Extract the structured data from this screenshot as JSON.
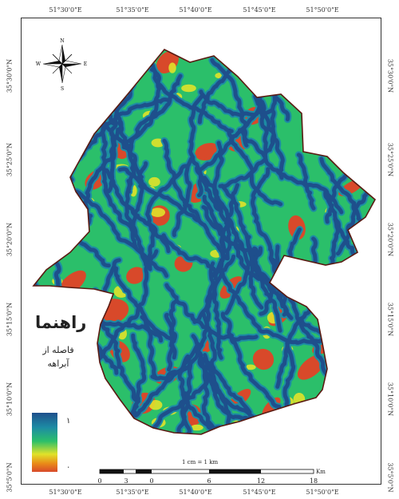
{
  "map": {
    "top_coords": [
      "51°30'0\"E",
      "51°35'0\"E",
      "51°40'0\"E",
      "51°45'0\"E",
      "51°50'0\"E"
    ],
    "bottom_coords": [
      "51°30'0\"E",
      "51°35'0\"E",
      "51°40'0\"E",
      "51°45'0\"E",
      "51°50'0\"E"
    ],
    "left_coords": [
      "35°30'0\"N",
      "35°25'0\"N",
      "35°20'0\"N",
      "35°15'0\"N",
      "35°10'0\"N",
      "35°5'0\"N"
    ],
    "right_coords": [
      "35°30'0\"N",
      "35°25'0\"N",
      "35°20'0\"N",
      "35°15'0\"N",
      "35°10'0\"N",
      "35°5'0\"N"
    ],
    "compass": {
      "n": "N",
      "s": "S",
      "e": "E",
      "w": "W"
    }
  },
  "legend": {
    "title": "راهنما",
    "subtitle_line1": "فاصله از",
    "subtitle_line2": "آبراهه",
    "high_label": "۱",
    "low_label": "۰",
    "colors": [
      "#1e4f8c",
      "#1d8ca4",
      "#2bbf6a",
      "#e0e22a",
      "#e98a18",
      "#d8492a"
    ]
  },
  "scale": {
    "label": "1 cm = 1 km",
    "ticks": [
      "0",
      "3",
      "0",
      "6",
      "12",
      "18"
    ],
    "unit": "Km"
  },
  "colors": {
    "drainage": "#1e4f8c",
    "buffer": "#1d8ca4",
    "mid": "#2bbf6a",
    "high": "#e0e22a",
    "far": "#d8492a",
    "boundary": "#5a1a12"
  }
}
